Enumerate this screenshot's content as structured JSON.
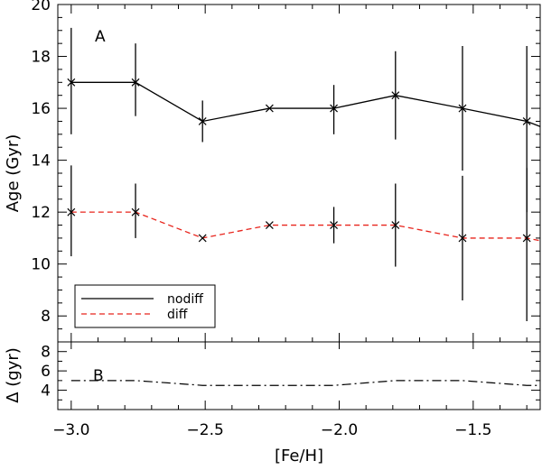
{
  "chart_data": {
    "type": "line",
    "xlabel": "[Fe/H]",
    "xlim": [
      -3.05,
      -1.25
    ],
    "x_ticks": [
      "-3.0",
      "-2.5",
      "-2.0",
      "-1.5"
    ],
    "x_tick_values": [
      -3.0,
      -2.5,
      -2.0,
      -1.5
    ],
    "x_minor_step": 0.1,
    "x_points": [
      -3.0,
      -2.76,
      -2.51,
      -2.26,
      -2.02,
      -1.79,
      -1.54,
      -1.3
    ],
    "panels": [
      {
        "label": "A",
        "ylabel": "Age (Gyr)",
        "ylim": [
          7.0,
          20.0
        ],
        "y_ticks": [
          "8",
          "10",
          "12",
          "14",
          "16",
          "18",
          "20"
        ],
        "y_tick_values": [
          8,
          10,
          12,
          14,
          16,
          18,
          20
        ],
        "legend": {
          "position": "bottom-left",
          "entries": [
            "nodiff",
            "diff"
          ]
        },
        "series": [
          {
            "name": "nodiff",
            "color": "#000000",
            "style": "solid",
            "values": [
              17.0,
              17.0,
              15.5,
              16.0,
              16.0,
              16.5,
              16.0,
              15.5
            ],
            "err_low": [
              15.0,
              15.7,
              14.7,
              16.0,
              15.0,
              14.8,
              13.6,
              12.0
            ],
            "err_high": [
              19.1,
              18.5,
              16.3,
              16.0,
              16.9,
              18.2,
              18.4,
              18.4
            ],
            "extension_value": 15.3
          },
          {
            "name": "diff",
            "color": "#e8241c",
            "style": "dashed",
            "values": [
              12.0,
              12.0,
              11.0,
              11.5,
              11.5,
              11.5,
              11.0,
              11.0
            ],
            "err_low": [
              10.3,
              11.0,
              11.0,
              11.5,
              10.8,
              9.9,
              8.6,
              7.8
            ],
            "err_high": [
              13.8,
              13.1,
              11.0,
              11.5,
              12.2,
              13.1,
              13.4,
              13.7
            ],
            "extension_value": 10.9
          }
        ]
      },
      {
        "label": "B",
        "ylabel": "Δ (gyr)",
        "ylim": [
          2.0,
          9.0
        ],
        "y_ticks": [
          "4",
          "6",
          "8"
        ],
        "y_tick_values": [
          4,
          6,
          8
        ],
        "series": [
          {
            "name": "delta",
            "color": "#000000",
            "style": "dashdot",
            "values": [
              5.0,
              5.0,
              4.5,
              4.5,
              4.5,
              5.0,
              5.0,
              4.5
            ],
            "extension_value": 4.5
          }
        ]
      }
    ]
  }
}
